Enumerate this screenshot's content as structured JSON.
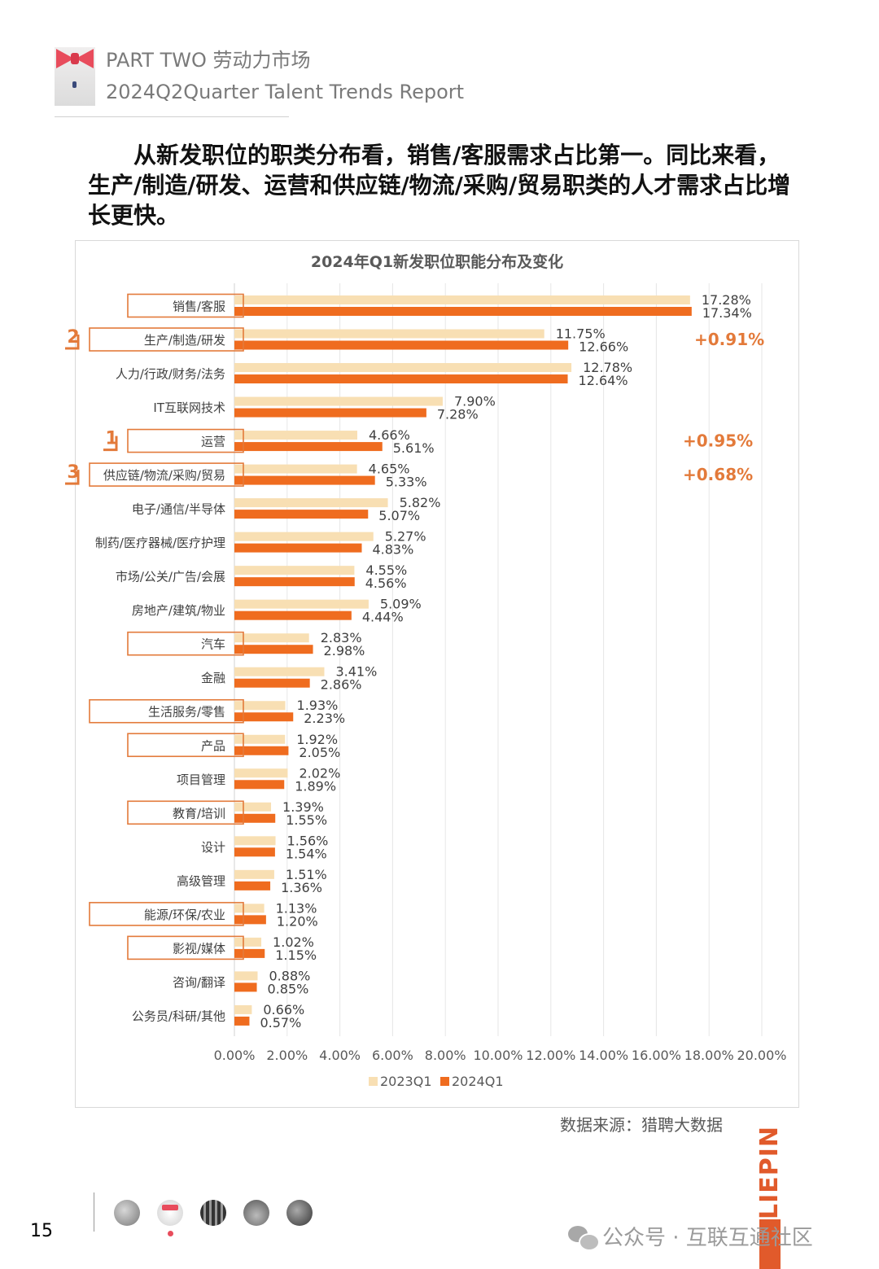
{
  "header": {
    "line1": "PART TWO 劳动力市场",
    "line2": "2024Q2Quarter Talent Trends Report"
  },
  "headline": "从新发职位的职类分布看，销售/客服需求占比第一。同比来看，生产/制造/研发、运营和供应链/物流/采购/贸易职类的人才需求占比增长更快。",
  "source": "数据来源：猎聘大数据",
  "brand": "LIEPIN",
  "page_number": "15",
  "footer_watermark": "公众号 · 互联互通社区",
  "colors": {
    "series_2023": "#f8dfb3",
    "series_2024": "#ef6c1f",
    "highlight": "#e37a3a"
  },
  "chart_data": {
    "type": "bar",
    "orientation": "horizontal",
    "title": "2024年Q1新发职位职能分布及变化",
    "categories": [
      "销售/客服",
      "生产/制造/研发",
      "人力/行政/财务/法务",
      "IT互联网技术",
      "运营",
      "供应链/物流/采购/贸易",
      "电子/通信/半导体",
      "制药/医疗器械/医疗护理",
      "市场/公关/广告/会展",
      "房地产/建筑/物业",
      "汽车",
      "金融",
      "生活服务/零售",
      "产品",
      "项目管理",
      "教育/培训",
      "设计",
      "高级管理",
      "能源/环保/农业",
      "影视/媒体",
      "咨询/翻译",
      "公务员/科研/其他"
    ],
    "series": [
      {
        "name": "2023Q1",
        "values": [
          17.28,
          11.75,
          12.78,
          7.9,
          4.66,
          4.65,
          5.82,
          5.27,
          4.55,
          5.09,
          2.83,
          3.41,
          1.93,
          1.92,
          2.02,
          1.39,
          1.56,
          1.51,
          1.13,
          1.02,
          0.88,
          0.66
        ]
      },
      {
        "name": "2024Q1",
        "values": [
          17.34,
          12.66,
          12.64,
          7.28,
          5.61,
          5.33,
          5.07,
          4.83,
          4.56,
          4.44,
          2.98,
          2.86,
          2.23,
          2.05,
          1.89,
          1.55,
          1.54,
          1.36,
          1.2,
          1.15,
          0.85,
          0.57
        ]
      }
    ],
    "value_labels_2023": [
      "17.28%",
      "11.75%",
      "12.78%",
      "7.90%",
      "4.66%",
      "4.65%",
      "5.82%",
      "5.27%",
      "4.55%",
      "5.09%",
      "2.83%",
      "3.41%",
      "1.93%",
      "1.92%",
      "2.02%",
      "1.39%",
      "1.56%",
      "1.51%",
      "1.13%",
      "1.02%",
      "0.88%",
      "0.66%"
    ],
    "value_labels_2024": [
      "17.34%",
      "12.66%",
      "12.64%",
      "7.28%",
      "5.61%",
      "5.33%",
      "5.07%",
      "4.83%",
      "4.56%",
      "4.44%",
      "2.98%",
      "2.86%",
      "2.23%",
      "2.05%",
      "1.89%",
      "1.55%",
      "1.54%",
      "1.36%",
      "1.20%",
      "1.15%",
      "0.85%",
      "0.57%"
    ],
    "x_ticks": [
      "0.00%",
      "2.00%",
      "4.00%",
      "6.00%",
      "8.00%",
      "10.00%",
      "12.00%",
      "14.00%",
      "16.00%",
      "18.00%",
      "20.00%"
    ],
    "xlim": [
      0,
      20
    ],
    "grid": true,
    "legend_position": "bottom",
    "boxed_categories": [
      "销售/客服",
      "生产/制造/研发",
      "运营",
      "供应链/物流/采购/贸易",
      "汽车",
      "生活服务/零售",
      "产品",
      "教育/培训",
      "能源/环保/农业",
      "影视/媒体"
    ],
    "rank_marks": [
      {
        "category": "运营",
        "rank": "1"
      },
      {
        "category": "生产/制造/研发",
        "rank": "2"
      },
      {
        "category": "供应链/物流/采购/贸易",
        "rank": "3"
      }
    ],
    "change_annotations": [
      {
        "category": "生产/制造/研发",
        "text": "+0.91%"
      },
      {
        "category": "运营",
        "text": "+0.95%"
      },
      {
        "category": "供应链/物流/采购/贸易",
        "text": "+0.68%"
      }
    ]
  }
}
